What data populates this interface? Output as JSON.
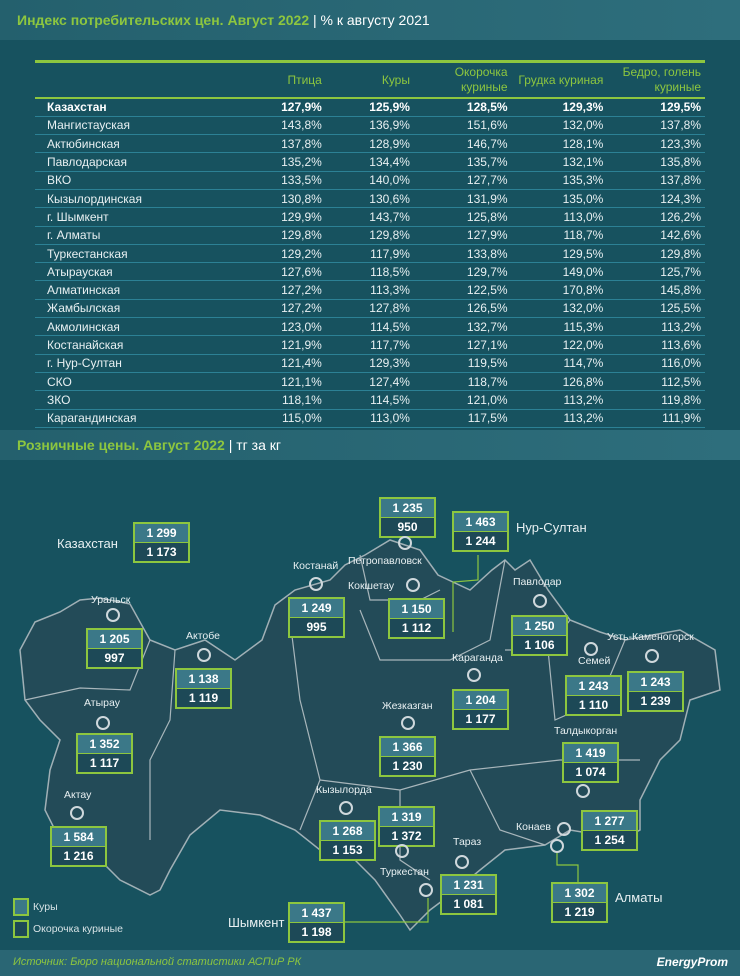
{
  "cpi": {
    "title": "Индекс потребительских цен. Август 2022",
    "separator": "|",
    "subtitle": "% к августу 2021",
    "columns": [
      "",
      "Птица",
      "Куры",
      "Окорочка куриные",
      "Грудка куриная",
      "Бедро, голень куриные"
    ],
    "rows": [
      [
        "Казахстан",
        "127,9%",
        "125,9%",
        "128,5%",
        "129,3%",
        "129,5%"
      ],
      [
        "Мангистауская",
        "143,8%",
        "136,9%",
        "151,6%",
        "132,0%",
        "137,8%"
      ],
      [
        "Актюбинская",
        "137,8%",
        "128,9%",
        "146,7%",
        "128,1%",
        "123,3%"
      ],
      [
        "Павлодарская",
        "135,2%",
        "134,4%",
        "135,7%",
        "132,1%",
        "135,8%"
      ],
      [
        "ВКО",
        "133,5%",
        "140,0%",
        "127,7%",
        "135,3%",
        "137,8%"
      ],
      [
        "Кызылординская",
        "130,8%",
        "130,6%",
        "131,9%",
        "135,0%",
        "124,3%"
      ],
      [
        "г. Шымкент",
        "129,9%",
        "143,7%",
        "125,8%",
        "113,0%",
        "126,2%"
      ],
      [
        "г. Алматы",
        "129,8%",
        "129,8%",
        "127,9%",
        "118,7%",
        "142,6%"
      ],
      [
        "Туркестанская",
        "129,2%",
        "117,9%",
        "133,8%",
        "129,5%",
        "129,8%"
      ],
      [
        "Атырауская",
        "127,6%",
        "118,5%",
        "129,7%",
        "149,0%",
        "125,7%"
      ],
      [
        "Алматинская",
        "127,2%",
        "113,3%",
        "122,5%",
        "170,8%",
        "145,8%"
      ],
      [
        "Жамбылская",
        "127,2%",
        "127,8%",
        "126,5%",
        "132,0%",
        "125,5%"
      ],
      [
        "Акмолинская",
        "123,0%",
        "114,5%",
        "132,7%",
        "115,3%",
        "113,2%"
      ],
      [
        "Костанайская",
        "121,9%",
        "117,7%",
        "127,1%",
        "122,0%",
        "113,6%"
      ],
      [
        "г. Нур-Султан",
        "121,4%",
        "129,3%",
        "119,5%",
        "114,7%",
        "116,0%"
      ],
      [
        "СКО",
        "121,1%",
        "127,4%",
        "118,7%",
        "126,8%",
        "112,5%"
      ],
      [
        "ЗКО",
        "118,1%",
        "114,5%",
        "121,0%",
        "113,2%",
        "119,8%"
      ],
      [
        "Карагандинская",
        "115,0%",
        "113,0%",
        "117,5%",
        "113,2%",
        "111,9%"
      ]
    ]
  },
  "retail": {
    "title": "Розничные цены. Август 2022",
    "separator": "|",
    "subtitle": "тг за кг",
    "legend": [
      "Куры",
      "Окорочка куриные"
    ],
    "cities": [
      {
        "name": "Казахстан",
        "kury": "1 299",
        "okorochka": "1 173"
      },
      {
        "name": "Петропавловск",
        "kury": "1 235",
        "okorochka": "950"
      },
      {
        "name": "Нур-Султан",
        "kury": "1 463",
        "okorochka": "1 244"
      },
      {
        "name": "Костанай",
        "kury": "1 249",
        "okorochka": "995"
      },
      {
        "name": "Кокшетау",
        "kury": "1 150",
        "okorochka": "1 112"
      },
      {
        "name": "Павлодар",
        "kury": "1 250",
        "okorochka": "1 106"
      },
      {
        "name": "Уральск",
        "kury": "1 205",
        "okorochka": "997"
      },
      {
        "name": "Актобе",
        "kury": "1 138",
        "okorochka": "1 119"
      },
      {
        "name": "Семей",
        "kury": "1 243",
        "okorochka": "1 110"
      },
      {
        "name": "Усть-Каменогорск",
        "kury": "1 243",
        "okorochka": "1 239"
      },
      {
        "name": "Караганда",
        "kury": "1 204",
        "okorochka": "1 177"
      },
      {
        "name": "Атырау",
        "kury": "1 352",
        "okorochka": "1 117"
      },
      {
        "name": "Жезказган",
        "kury": "1 366",
        "okorochka": "1 230"
      },
      {
        "name": "Талдыкорган",
        "kury": "1 419",
        "okorochka": "1 074"
      },
      {
        "name": "Кызылорда",
        "kury": "1 268",
        "okorochka": "1 153"
      },
      {
        "name": "Туркестан",
        "kury": "1 319",
        "okorochka": "1 372"
      },
      {
        "name": "Актау",
        "kury": "1 584",
        "okorochka": "1 216"
      },
      {
        "name": "Конаев",
        "kury": "1 277",
        "okorochka": "1 254"
      },
      {
        "name": "Тараз",
        "kury": "1 231",
        "okorochka": "1 081"
      },
      {
        "name": "Алматы",
        "kury": "1 302",
        "okorochka": "1 219"
      },
      {
        "name": "Шымкент",
        "kury": "1 437",
        "okorochka": "1 198"
      }
    ]
  },
  "footer": {
    "source": "Источник: Бюро национальной статистики АСПиР РК",
    "logo": "EnergyProm"
  },
  "colors": {
    "accent": "#8dc63f",
    "background": "#17525f"
  }
}
